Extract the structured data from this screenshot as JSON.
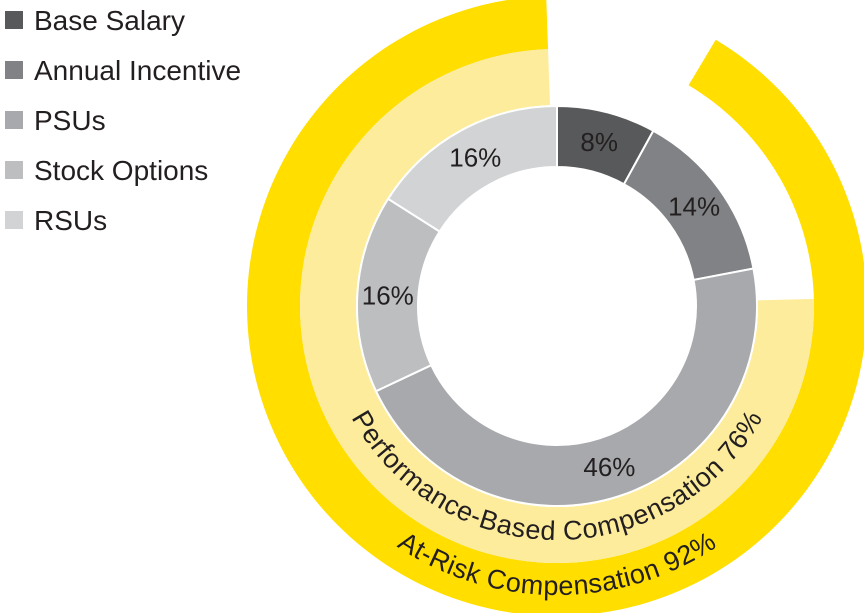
{
  "chart_data": {
    "type": "pie",
    "variant": "donut-with-outer-rings",
    "title": "",
    "categories": [
      "Base Salary",
      "Annual Incentive",
      "PSUs",
      "Stock Options",
      "RSUs"
    ],
    "values": [
      8,
      14,
      46,
      16,
      16
    ],
    "labels": [
      "8%",
      "14%",
      "46%",
      "16%",
      "16%"
    ],
    "colors": [
      "#58595b",
      "#808285",
      "#a7a9ac",
      "#bcbec0",
      "#d1d3d4"
    ],
    "legend": {
      "position": "top-left",
      "entries": [
        {
          "label": "Base Salary",
          "color": "#58595b"
        },
        {
          "label": "Annual Incentive",
          "color": "#808285"
        },
        {
          "label": "PSUs",
          "color": "#a7a9ac"
        },
        {
          "label": "Stock Options",
          "color": "#bcbec0"
        },
        {
          "label": "RSUs",
          "color": "#d1d3d4"
        }
      ]
    },
    "rings": [
      {
        "name": "Performance-Based Compensation",
        "value": 76,
        "label": "Performance-Based Compensation 76%",
        "color": "#fdec9c"
      },
      {
        "name": "At-Risk Compensation",
        "value": 92,
        "label": "At-Risk Compensation 92%",
        "color": "#ffde00"
      }
    ]
  }
}
